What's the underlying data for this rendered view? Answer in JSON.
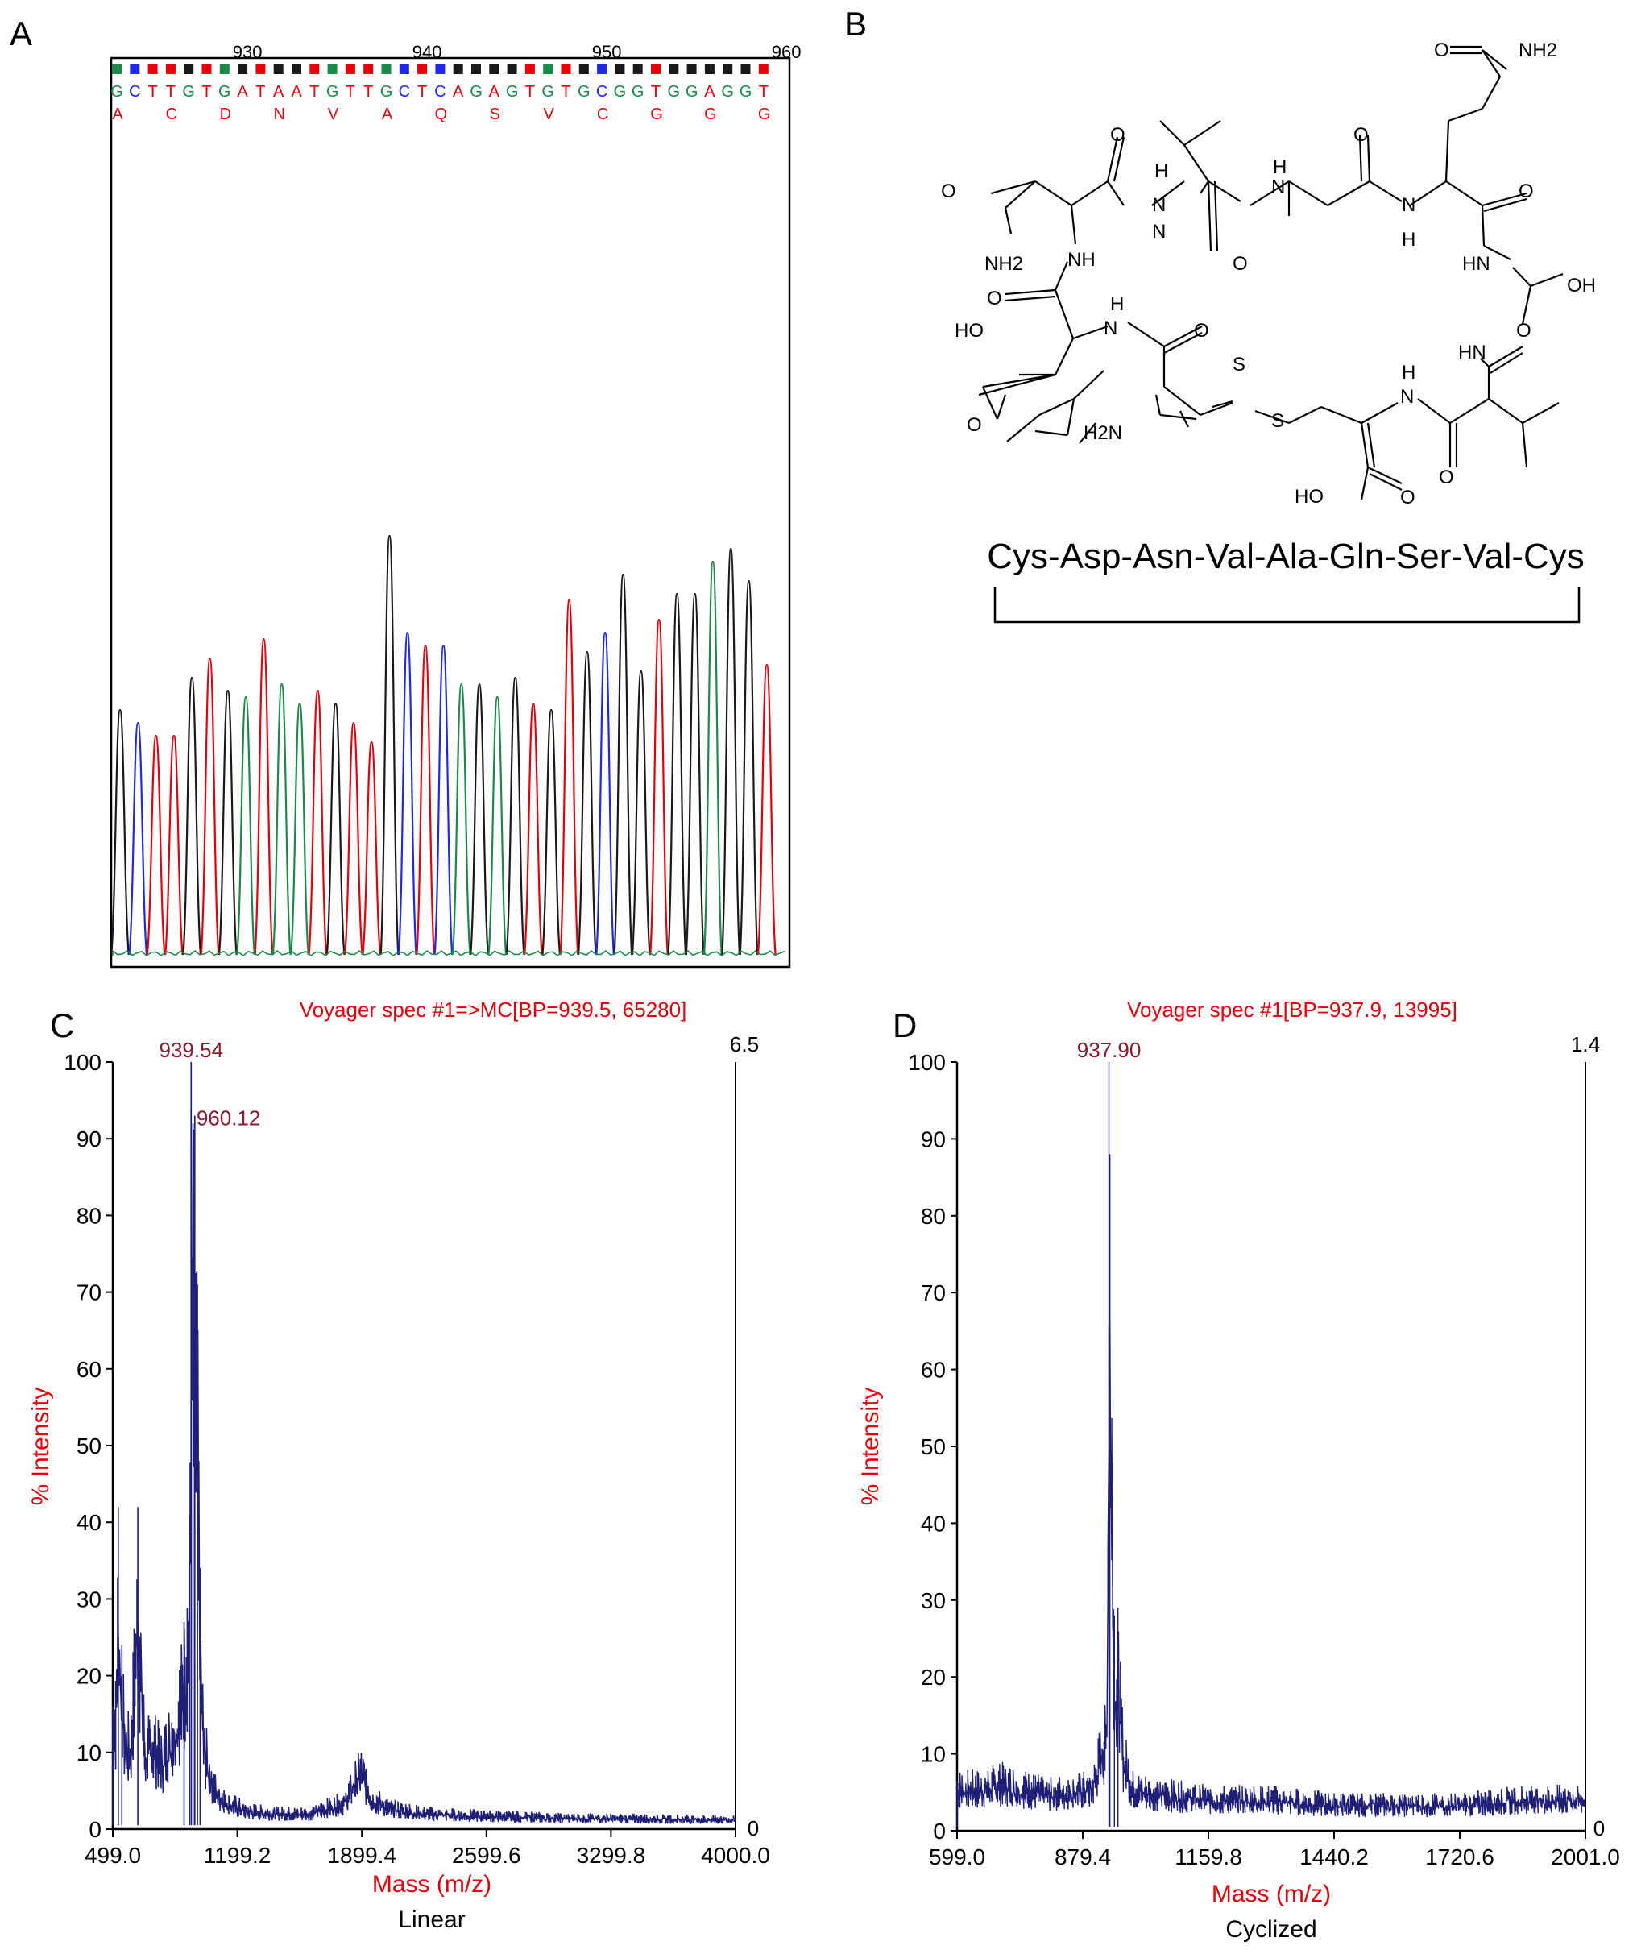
{
  "panel_labels": {
    "a": "A",
    "b": "B",
    "c": "C",
    "d": "D"
  },
  "colors": {
    "A": "#e8000b",
    "C": "#1f28e8",
    "G": "#1a1a1a",
    "T": "#e8000b",
    "green": "#1a8a4a",
    "spectrum": "#1f1f78",
    "annotation": "#e8000b",
    "peak_label": "#8b1a2e",
    "axis": "#000000"
  },
  "sequencing": {
    "ticks": [
      {
        "label": "930",
        "base_index": 7
      },
      {
        "label": "940",
        "base_index": 17
      },
      {
        "label": "950",
        "base_index": 27
      },
      {
        "label": "960",
        "base_index": 37
      }
    ],
    "bases": [
      "G",
      "C",
      "T",
      "T",
      "G",
      "T",
      "G",
      "A",
      "T",
      "A",
      "A",
      "T",
      "G",
      "T",
      "T",
      "G",
      "C",
      "T",
      "C",
      "A",
      "G",
      "A",
      "G",
      "T",
      "G",
      "T",
      "G",
      "C",
      "G",
      "G",
      "T",
      "G",
      "G",
      "A",
      "G",
      "G",
      "T"
    ],
    "base_row_text": "GCTTGTGATAATGTTGCT CAGAGTGTGTGCGGTGGAGGT",
    "amino_acids": [
      "A",
      "C",
      "D",
      "N",
      "V",
      "A",
      "Q",
      "S",
      "V",
      "C",
      "G",
      "G",
      "G"
    ]
  },
  "structure": {
    "sequence_text": "Cys-Asp-Asn-Val-Ala-Gln-Ser-Val-Cys",
    "atom_labels": {
      "o1": "O",
      "o2": "O",
      "o3": "O",
      "o4": "O",
      "o5": "O",
      "o6": "O",
      "o7": "O",
      "o8": "O",
      "o9": "O",
      "o10": "O",
      "o11": "O",
      "o12": "O",
      "nh2_top": "NH2",
      "nh2_left": "NH2",
      "h2n": "H2N",
      "nh_a": "NH",
      "n_a": "N",
      "h_a": "H",
      "n_b": "N",
      "h_b": "H",
      "n_c": "N",
      "h_c": "H",
      "hn_a": "HN",
      "hn_b": "HN",
      "n_d": "N",
      "h_d": "H",
      "n_e": "N",
      "h_e": "H",
      "oh": "OH",
      "ho1": "HO",
      "ho2": "HO",
      "s1": "S",
      "s2": "S"
    }
  },
  "chart_data": [
    {
      "type": "line",
      "panel": "C",
      "title": "Voyager spec #1=>MC[BP=939.5, 65280]",
      "xlabel": "Mass (m/z)",
      "ylabel": "% Intensity",
      "subtitle": "Linear",
      "xlim": [
        499.0,
        4000.0
      ],
      "ylim": [
        0,
        100
      ],
      "xticks": [
        "499.0",
        "1199.2",
        "1899.4",
        "2599.6",
        "3299.8",
        "4000.0"
      ],
      "yticks": [
        "0",
        "10",
        "20",
        "30",
        "40",
        "50",
        "60",
        "70",
        "80",
        "90",
        "100"
      ],
      "right_axis": {
        "top": "6.5",
        "bottom": "0"
      },
      "peak_labels": [
        {
          "x": 939.54,
          "y": 100,
          "label": "939.54"
        },
        {
          "x": 960.12,
          "y": 93,
          "label": "960.12"
        }
      ],
      "x": [
        515,
        530,
        550,
        570,
        600,
        640,
        680,
        720,
        780,
        850,
        900,
        930,
        939.5,
        950,
        960.1,
        975,
        990,
        1010,
        1040,
        1080,
        1150,
        1250,
        1400,
        1600,
        1800,
        1860,
        1899.4,
        1950,
        2050,
        2250,
        2600,
        3000,
        3500,
        4000
      ],
      "values": [
        20,
        42,
        24,
        16,
        15,
        42,
        14,
        16,
        13,
        20,
        27,
        41,
        100,
        92,
        93,
        71,
        34,
        16,
        11,
        7,
        5,
        3.5,
        3,
        3,
        5,
        9,
        11,
        6,
        4,
        3,
        2.5,
        2.2,
        2,
        1.8
      ],
      "series": [
        {
          "values": [
            20,
            42,
            24,
            16,
            15,
            42,
            14,
            16,
            13,
            20,
            27,
            41,
            100,
            92,
            93,
            71,
            34,
            16,
            11,
            7,
            5,
            3.5,
            3,
            3,
            5,
            9,
            11,
            6,
            4,
            3,
            2.5,
            2.2,
            2,
            1.8
          ]
        }
      ]
    },
    {
      "type": "line",
      "panel": "D",
      "title": "Voyager spec #1[BP=937.9, 13995]",
      "xlabel": "Mass (m/z)",
      "ylabel": "% Intensity",
      "subtitle": "Cyclized",
      "xlim": [
        599.0,
        2001.0
      ],
      "ylim": [
        0,
        100
      ],
      "xticks": [
        "599.0",
        "879.4",
        "1159.8",
        "1440.2",
        "1720.6",
        "2001.0"
      ],
      "yticks": [
        "0",
        "10",
        "20",
        "30",
        "40",
        "50",
        "60",
        "70",
        "80",
        "90",
        "100"
      ],
      "right_axis": {
        "top": "1.4",
        "bottom": "0"
      },
      "peak_labels": [
        {
          "x": 937.9,
          "y": 100,
          "label": "937.90"
        }
      ],
      "x": [
        599,
        650,
        700,
        800,
        900,
        925,
        933,
        937.9,
        940,
        950,
        958,
        970,
        990,
        1050,
        1159.8,
        1300,
        1440.2,
        1600,
        1720.6,
        1850,
        2001
      ],
      "values": [
        8,
        8,
        9,
        7,
        8,
        16,
        17,
        100,
        88,
        28,
        29,
        14,
        8,
        7,
        6,
        6,
        5,
        5,
        5,
        6,
        6
      ],
      "series": [
        {
          "values": [
            8,
            8,
            9,
            7,
            8,
            16,
            17,
            100,
            88,
            28,
            29,
            14,
            8,
            7,
            6,
            6,
            5,
            5,
            5,
            6,
            6
          ]
        }
      ]
    }
  ]
}
